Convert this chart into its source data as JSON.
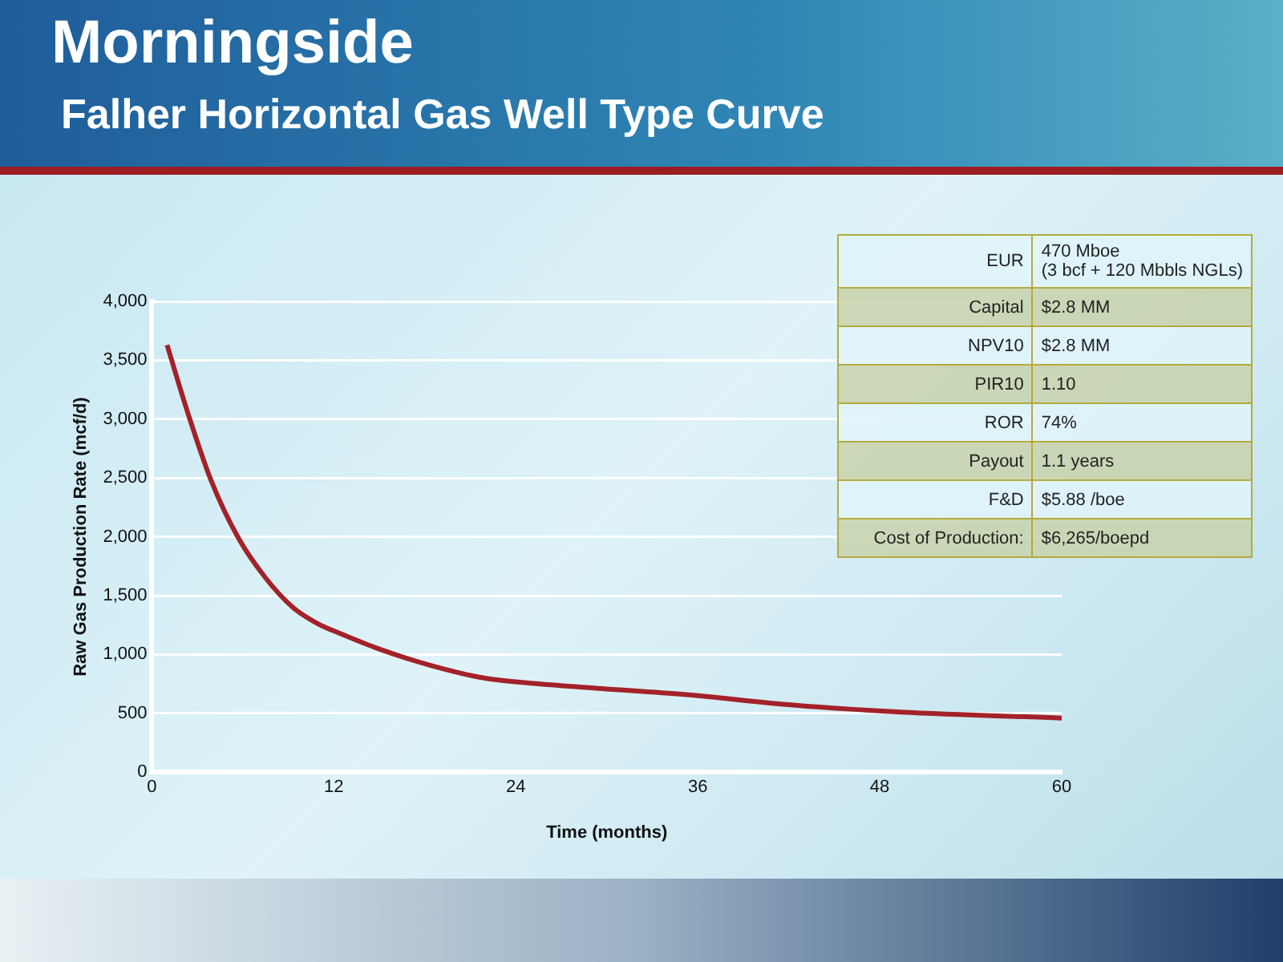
{
  "chart_data": {
    "type": "line",
    "title": "Morningside",
    "subtitle": "Falher Horizontal Gas Well Type Curve",
    "xlabel": "Time (months)",
    "ylabel": "Raw Gas Production Rate (mcf/d)",
    "series": [
      {
        "color": "#a3222a",
        "x": [
          1,
          2.45,
          3.9,
          5.7,
          7.5,
          9.3,
          11.1,
          12,
          14.7,
          18.3,
          21.9,
          25.5,
          29.7,
          35.1,
          42.3,
          49.4,
          60
        ],
        "values": [
          3630,
          3020,
          2480,
          1990,
          1650,
          1400,
          1250,
          1200,
          1060,
          910,
          800,
          750,
          710,
          660,
          570,
          510,
          460
        ]
      }
    ],
    "xlim": [
      0,
      60
    ],
    "xticks": [
      0,
      12,
      24,
      36,
      48,
      60
    ],
    "ylim": [
      0,
      4000
    ],
    "yticks": [
      {
        "value": 0,
        "label": "0"
      },
      {
        "value": 500,
        "label": "500"
      },
      {
        "value": 1000,
        "label": "1,000"
      },
      {
        "value": 1500,
        "label": "1,500"
      },
      {
        "value": 2000,
        "label": "2,000"
      },
      {
        "value": 2500,
        "label": "2,500"
      },
      {
        "value": 3000,
        "label": "3,000"
      },
      {
        "value": 3500,
        "label": "3,500"
      },
      {
        "value": 4000,
        "label": "4,000"
      }
    ],
    "grid": "y",
    "legend": false,
    "marker": "none",
    "line_style": "solid",
    "annotations": [
      "EUR",
      "470 Mboe\n(3 bcf + 120 Mbbls NGLs)",
      "Capital",
      "$2.8 MM",
      "NPV10",
      "$2.8 MM",
      "PIR10",
      "1.10",
      "ROR",
      "74%",
      "Payout",
      "1.1 years",
      "F&D",
      "$5.88 /boe",
      "Cost of Production:",
      "$6,265/boepd"
    ]
  }
}
